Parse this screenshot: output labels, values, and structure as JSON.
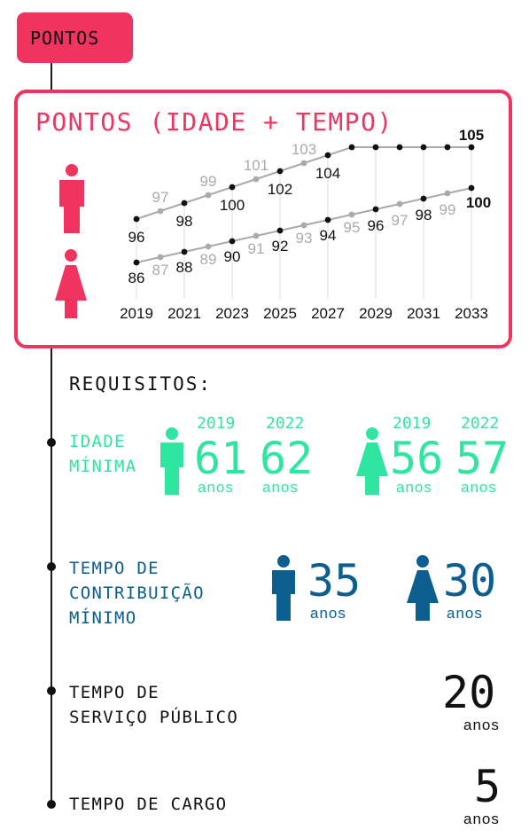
{
  "tab": {
    "label": "PONTOS"
  },
  "card": {
    "title": "PONTOS (IDADE + TEMPO)"
  },
  "colors": {
    "accent": "#f0335f",
    "green": "#2ee6a0",
    "blue": "#0b5e8e",
    "gray": "#aaaaaa",
    "black": "#111111"
  },
  "chart_data": {
    "type": "line",
    "title": "PONTOS (IDADE + TEMPO)",
    "x": [
      2019,
      2020,
      2021,
      2022,
      2023,
      2024,
      2025,
      2026,
      2027,
      2028,
      2029,
      2030,
      2031,
      2032,
      2033
    ],
    "x_tick_labels": [
      "2019",
      "2021",
      "2023",
      "2025",
      "2027",
      "2029",
      "2031",
      "2033"
    ],
    "series": [
      {
        "icon": "male-icon",
        "values": [
          96,
          97,
          98,
          99,
          100,
          101,
          102,
          103,
          104,
          105,
          105,
          105,
          105,
          105,
          105
        ],
        "labels": [
          "96",
          "97",
          "98",
          "99",
          "100",
          "101",
          "102",
          "103",
          "104",
          "",
          "",
          "",
          "",
          "",
          "105"
        ]
      },
      {
        "icon": "female-icon",
        "values": [
          86,
          87,
          88,
          89,
          90,
          91,
          92,
          93,
          94,
          95,
          96,
          97,
          98,
          99,
          100
        ],
        "labels": [
          "86",
          "87",
          "88",
          "89",
          "90",
          "91",
          "92",
          "93",
          "94",
          "95",
          "96",
          "97",
          "98",
          "99",
          "100"
        ]
      }
    ]
  },
  "requirements": {
    "heading": "REQUISITOS:",
    "idade": {
      "label": "IDADE\nMÍNIMA",
      "male": {
        "year_a": "2019",
        "value_a": "61",
        "year_b": "2022",
        "value_b": "62",
        "unit": "anos"
      },
      "female": {
        "year_a": "2019",
        "value_a": "56",
        "year_b": "2022",
        "value_b": "57",
        "unit": "anos"
      }
    },
    "contribuicao": {
      "label": "TEMPO DE\nCONTRIBUIÇÃO\nMÍNIMO",
      "male": {
        "value": "35",
        "unit": "anos"
      },
      "female": {
        "value": "30",
        "unit": "anos"
      }
    },
    "servico": {
      "label": "TEMPO DE\nSERVIÇO PÚBLICO",
      "value": "20",
      "unit": "anos"
    },
    "cargo": {
      "label": "TEMPO DE CARGO",
      "value": "5",
      "unit": "anos"
    }
  }
}
